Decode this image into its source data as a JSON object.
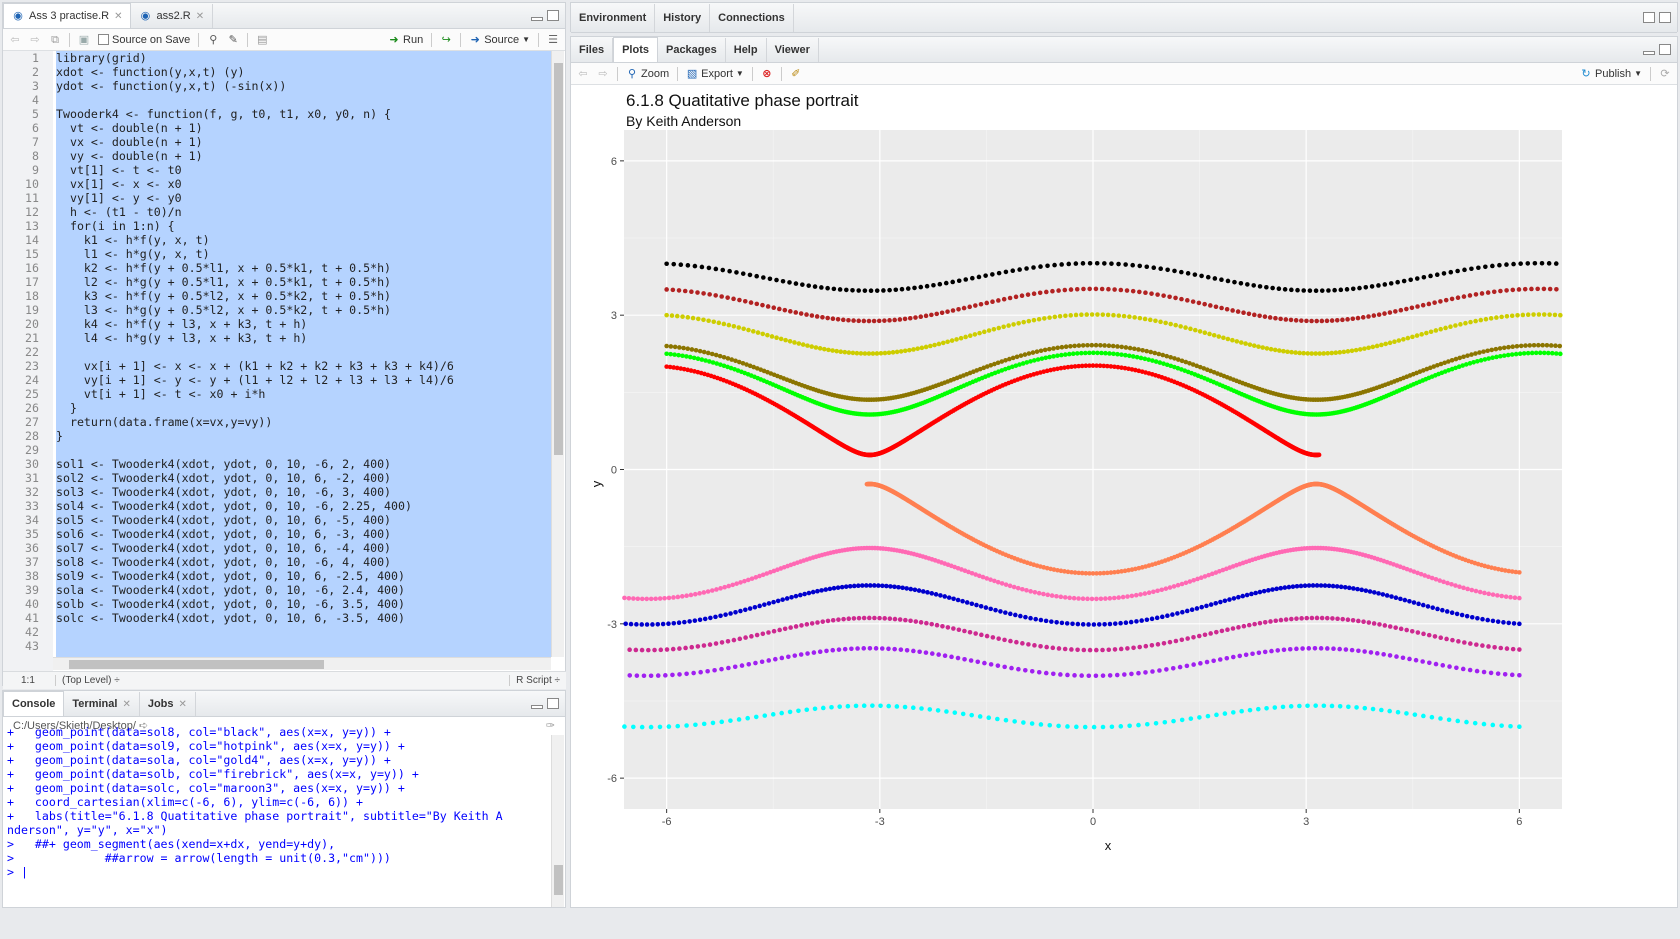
{
  "editor": {
    "tabs": [
      {
        "label": "Ass 3 practise.R"
      },
      {
        "label": "ass2.R"
      }
    ],
    "toolbar": {
      "source_on_save": "Source on Save",
      "run": "Run",
      "source": "Source"
    },
    "lines": [
      "library(grid)",
      "xdot <- function(y,x,t) (y)",
      "ydot <- function(y,x,t) (-sin(x))",
      "",
      "Twooderk4 <- function(f, g, t0, t1, x0, y0, n) {",
      "  vt <- double(n + 1)",
      "  vx <- double(n + 1)",
      "  vy <- double(n + 1)",
      "  vt[1] <- t <- t0",
      "  vx[1] <- x <- x0",
      "  vy[1] <- y <- y0",
      "  h <- (t1 - t0)/n",
      "  for(i in 1:n) {",
      "    k1 <- h*f(y, x, t)",
      "    l1 <- h*g(y, x, t)",
      "    k2 <- h*f(y + 0.5*l1, x + 0.5*k1, t + 0.5*h)",
      "    l2 <- h*g(y + 0.5*l1, x + 0.5*k1, t + 0.5*h)",
      "    k3 <- h*f(y + 0.5*l2, x + 0.5*k2, t + 0.5*h)",
      "    l3 <- h*g(y + 0.5*l2, x + 0.5*k2, t + 0.5*h)",
      "    k4 <- h*f(y + l3, x + k3, t + h)",
      "    l4 <- h*g(y + l3, x + k3, t + h)",
      "",
      "    vx[i + 1] <- x <- x + (k1 + k2 + k2 + k3 + k3 + k4)/6",
      "    vy[i + 1] <- y <- y + (l1 + l2 + l2 + l3 + l3 + l4)/6",
      "    vt[i + 1] <- t <- x0 + i*h",
      "  }",
      "  return(data.frame(x=vx,y=vy))",
      "}",
      "",
      "sol1 <- Twooderk4(xdot, ydot, 0, 10, -6, 2, 400)",
      "sol2 <- Twooderk4(xdot, ydot, 0, 10, 6, -2, 400)",
      "sol3 <- Twooderk4(xdot, ydot, 0, 10, -6, 3, 400)",
      "sol4 <- Twooderk4(xdot, ydot, 0, 10, -6, 2.25, 400)",
      "sol5 <- Twooderk4(xdot, ydot, 0, 10, 6, -5, 400)",
      "sol6 <- Twooderk4(xdot, ydot, 0, 10, 6, -3, 400)",
      "sol7 <- Twooderk4(xdot, ydot, 0, 10, 6, -4, 400)",
      "sol8 <- Twooderk4(xdot, ydot, 0, 10, -6, 4, 400)",
      "sol9 <- Twooderk4(xdot, ydot, 0, 10, 6, -2.5, 400)",
      "sola <- Twooderk4(xdot, ydot, 0, 10, -6, 2.4, 400)",
      "solb <- Twooderk4(xdot, ydot, 0, 10, -6, 3.5, 400)",
      "solc <- Twooderk4(xdot, ydot, 0, 10, 6, -3.5, 400)",
      "",
      ""
    ],
    "status": {
      "position": "1:1",
      "scope": "(Top Level) ÷",
      "filetype": "R Script ÷"
    }
  },
  "console": {
    "tabs": [
      {
        "label": "Console"
      },
      {
        "label": "Terminal"
      },
      {
        "label": "Jobs"
      }
    ],
    "path": "C:/Users/Skieth/Desktop/",
    "lines": [
      "+   geom_point(data=sol8, col=\"black\", aes(x=x, y=y)) +",
      "+   geom_point(data=sol9, col=\"hotpink\", aes(x=x, y=y)) +",
      "+   geom_point(data=sola, col=\"gold4\", aes(x=x, y=y)) +",
      "+   geom_point(data=solb, col=\"firebrick\", aes(x=x, y=y)) +",
      "+   geom_point(data=solc, col=\"maroon3\", aes(x=x, y=y)) +",
      "+   coord_cartesian(xlim=c(-6, 6), ylim=c(-6, 6)) +",
      "+   labs(title=\"6.1.8 Quatitative phase portrait\", subtitle=\"By Keith A",
      "nderson\", y=\"y\", x=\"x\")",
      ">   ##+ geom_segment(aes(xend=x+dx, yend=y+dy),",
      ">             ##arrow = arrow(length = unit(0.3,\"cm\")))",
      "> |"
    ]
  },
  "env_pane": {
    "tabs": [
      {
        "label": "Environment"
      },
      {
        "label": "History"
      },
      {
        "label": "Connections"
      }
    ]
  },
  "plots_pane": {
    "tabs": [
      {
        "label": "Files"
      },
      {
        "label": "Plots"
      },
      {
        "label": "Packages"
      },
      {
        "label": "Help"
      },
      {
        "label": "Viewer"
      }
    ],
    "toolbar": {
      "zoom": "Zoom",
      "export": "Export",
      "publish": "Publish"
    }
  },
  "chart_data": {
    "type": "scatter",
    "title": "6.1.8 Quatitative phase portrait",
    "subtitle": "By Keith Anderson",
    "xlabel": "x",
    "ylabel": "y",
    "xlim": [
      -6.6,
      6.6
    ],
    "ylim": [
      -6.6,
      6.6
    ],
    "xticks": [
      "-6",
      "-3",
      "0",
      "3",
      "6"
    ],
    "yticks": [
      "6",
      "3",
      "0",
      "-3",
      "-6"
    ],
    "series": [
      {
        "color": "#000000",
        "initial_x": -6,
        "initial_y": 4,
        "x_end": 6.6,
        "sep": 1
      },
      {
        "color": "#b22222",
        "initial_x": -6,
        "initial_y": 3.5,
        "x_end": 6.6,
        "sep": 1
      },
      {
        "color": "#cdcd00",
        "initial_x": -6,
        "initial_y": 3,
        "x_end": 6.6,
        "sep": 1
      },
      {
        "color": "#8b7500",
        "initial_x": -6,
        "initial_y": 2.4,
        "x_end": 6.6,
        "sep": 1
      },
      {
        "color": "#00ff00",
        "initial_x": -6,
        "initial_y": 2.25,
        "x_end": 6.6,
        "sep": 1
      },
      {
        "color": "#ff0000",
        "initial_x": -6,
        "initial_y": 2,
        "x_end": 3.2,
        "sep": 1
      },
      {
        "color": "#ff7f50",
        "initial_x": 6,
        "initial_y": -2,
        "x_end": -3.2,
        "sep": -1
      },
      {
        "color": "#ff69b4",
        "initial_x": 6,
        "initial_y": -2.5,
        "x_end": -6.6,
        "sep": -1
      },
      {
        "color": "#0000cd",
        "initial_x": 6,
        "initial_y": -3,
        "x_end": -6.6,
        "sep": -1
      },
      {
        "color": "#cd2990",
        "initial_x": 6,
        "initial_y": -3.5,
        "x_end": -6.6,
        "sep": -1
      },
      {
        "color": "#a020f0",
        "initial_x": 6,
        "initial_y": -4,
        "x_end": -6.6,
        "sep": -1
      },
      {
        "color": "#00ffff",
        "initial_x": 6,
        "initial_y": -5,
        "x_end": -6.6,
        "sep": -1
      }
    ]
  }
}
